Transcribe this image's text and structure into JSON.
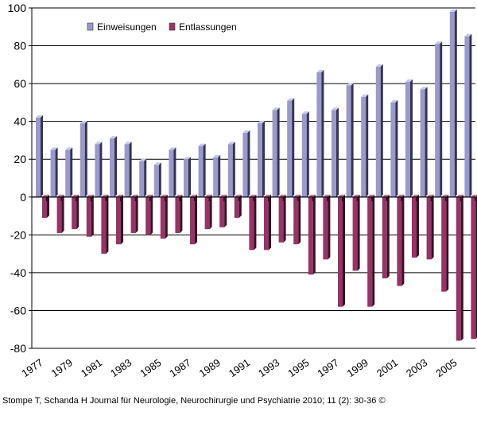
{
  "chart_data": {
    "type": "bar",
    "categories": [
      "1977",
      "1978",
      "1979",
      "1980",
      "1981",
      "1982",
      "1983",
      "1984",
      "1985",
      "1986",
      "1987",
      "1988",
      "1989",
      "1990",
      "1991",
      "1992",
      "1993",
      "1994",
      "1995",
      "1996",
      "1997",
      "1998",
      "1999",
      "2000",
      "2001",
      "2002",
      "2003",
      "2004",
      "2005",
      "2006"
    ],
    "tick_labels": [
      "1977",
      "",
      "1979",
      "",
      "1981",
      "",
      "1983",
      "",
      "1985",
      "",
      "1987",
      "",
      "1989",
      "",
      "1991",
      "",
      "1993",
      "",
      "1995",
      "",
      "1997",
      "",
      "1999",
      "",
      "2001",
      "",
      "2003",
      "",
      "2005",
      ""
    ],
    "series": [
      {
        "name": "Einweisungen",
        "color": "#9999cc",
        "values": [
          42,
          25,
          25,
          39,
          28,
          31,
          28,
          19,
          17,
          25,
          20,
          27,
          21,
          28,
          34,
          39,
          46,
          51,
          44,
          66,
          46,
          59,
          53,
          69,
          50,
          61,
          57,
          81,
          98,
          85
        ]
      },
      {
        "name": "Entlassungen",
        "color": "#993366",
        "values": [
          -11,
          -19,
          -17,
          -21,
          -30,
          -25,
          -19,
          -20,
          -22,
          -19,
          -25,
          -17,
          -16,
          -11,
          -28,
          -28,
          -24,
          -25,
          -41,
          -33,
          -58,
          -39,
          -58,
          -43,
          -47,
          -32,
          -33,
          -50,
          -76,
          -75
        ]
      }
    ],
    "ylim": [
      -80,
      100
    ],
    "yticks": [
      -80,
      -60,
      -40,
      -20,
      0,
      20,
      40,
      60,
      80,
      100
    ],
    "grid": true,
    "legend": "top-left",
    "title": "",
    "xlabel": "",
    "ylabel": ""
  },
  "footer": "Stompe T, Schanda H Journal für Neurologie, Neurochirurgie und Psychiatrie 2010; 11 (2): 30-36 ©"
}
